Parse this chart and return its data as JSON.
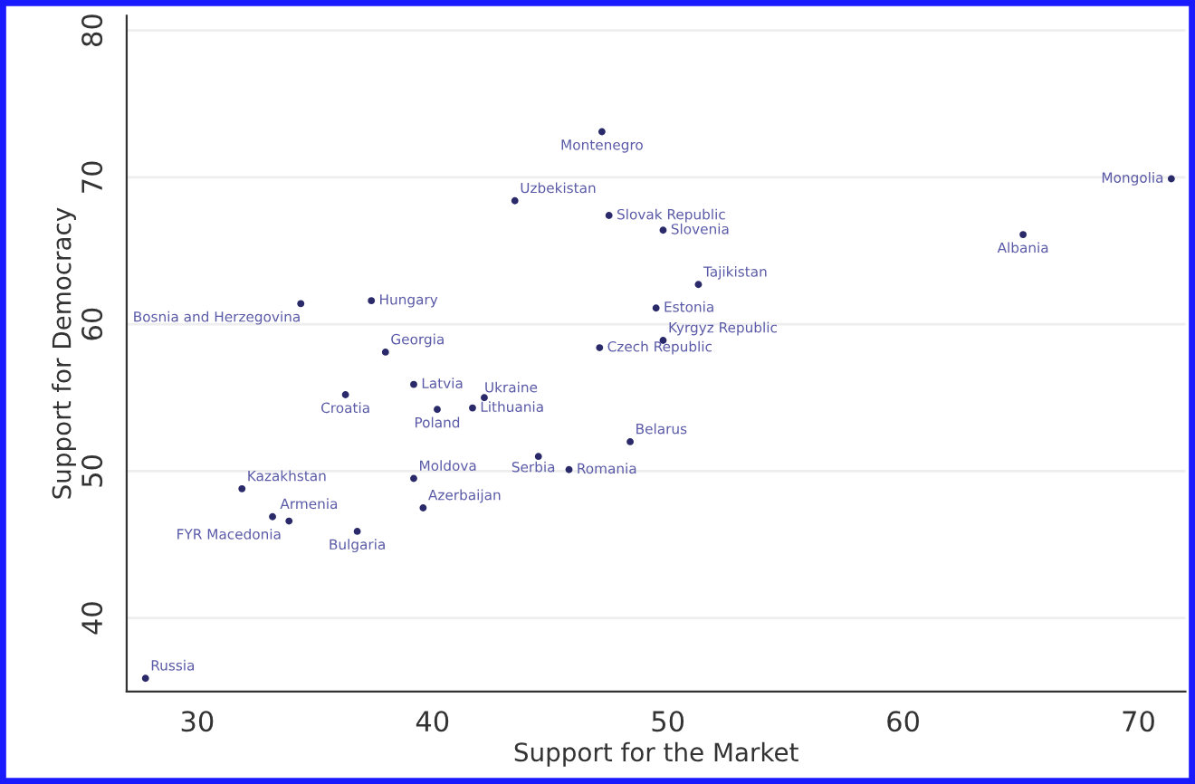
{
  "chart_data": {
    "type": "scatter",
    "xlabel": "Support for the Market",
    "ylabel": "Support for Democracy",
    "x": [
      47.2,
      43.5,
      47.5,
      49.8,
      71.4,
      65.1,
      51.3,
      49.5,
      49.8,
      47.1,
      48.4,
      45.8,
      44.5,
      37.4,
      34.4,
      38.0,
      39.2,
      42.2,
      41.7,
      40.2,
      36.3,
      39.2,
      39.6,
      31.9,
      33.2,
      33.9,
      36.8,
      27.8
    ],
    "series": [
      {
        "color": "#2a2a6a",
        "values": [
          73.1,
          68.4,
          67.4,
          66.4,
          69.9,
          66.1,
          62.7,
          61.1,
          58.9,
          58.4,
          52.0,
          50.1,
          51.0,
          61.6,
          61.4,
          58.1,
          55.9,
          55.0,
          54.3,
          54.2,
          55.2,
          49.5,
          47.5,
          48.8,
          46.9,
          46.6,
          45.9,
          35.9
        ]
      }
    ],
    "annotations": [
      {
        "text": "Montenegro",
        "x": 47.2,
        "y": 73.1
      },
      {
        "text": "Uzbekistan",
        "x": 43.5,
        "y": 68.4
      },
      {
        "text": "Slovak Republic",
        "x": 47.5,
        "y": 67.4
      },
      {
        "text": "Slovenia",
        "x": 49.8,
        "y": 66.4
      },
      {
        "text": "Mongolia",
        "x": 71.4,
        "y": 69.9
      },
      {
        "text": "Albania",
        "x": 65.1,
        "y": 66.1
      },
      {
        "text": "Tajikistan",
        "x": 51.3,
        "y": 62.7
      },
      {
        "text": "Estonia",
        "x": 49.5,
        "y": 61.1
      },
      {
        "text": "Kyrgyz Republic",
        "x": 49.8,
        "y": 58.9
      },
      {
        "text": "Czech Republic",
        "x": 47.1,
        "y": 58.4
      },
      {
        "text": "Belarus",
        "x": 48.4,
        "y": 52.0
      },
      {
        "text": "Romania",
        "x": 45.8,
        "y": 50.1
      },
      {
        "text": "Serbia",
        "x": 44.5,
        "y": 51.0
      },
      {
        "text": "Hungary",
        "x": 37.4,
        "y": 61.6
      },
      {
        "text": "Bosnia and Herzegovina",
        "x": 34.4,
        "y": 61.4
      },
      {
        "text": "Georgia",
        "x": 38.0,
        "y": 58.1
      },
      {
        "text": "Latvia",
        "x": 39.2,
        "y": 55.9
      },
      {
        "text": "Ukraine",
        "x": 42.2,
        "y": 55.0
      },
      {
        "text": "Lithuania",
        "x": 41.7,
        "y": 54.3
      },
      {
        "text": "Poland",
        "x": 40.2,
        "y": 54.2
      },
      {
        "text": "Croatia",
        "x": 36.3,
        "y": 55.2
      },
      {
        "text": "Moldova",
        "x": 39.2,
        "y": 49.5
      },
      {
        "text": "Azerbaijan",
        "x": 39.6,
        "y": 47.5
      },
      {
        "text": "Kazakhstan",
        "x": 31.9,
        "y": 48.8
      },
      {
        "text": "Armenia",
        "x": 33.2,
        "y": 46.9
      },
      {
        "text": "FYR Macedonia",
        "x": 33.9,
        "y": 46.6
      },
      {
        "text": "Bulgaria",
        "x": 36.8,
        "y": 45.9
      },
      {
        "text": "Russia",
        "x": 27.8,
        "y": 35.9
      }
    ],
    "xlim": [
      27,
      72
    ],
    "xticks": [
      30,
      40,
      50,
      60,
      70
    ],
    "ylim": [
      35,
      81
    ],
    "yticks": [
      40,
      50,
      60,
      70,
      80
    ],
    "grid": "y",
    "marker": "circle"
  }
}
